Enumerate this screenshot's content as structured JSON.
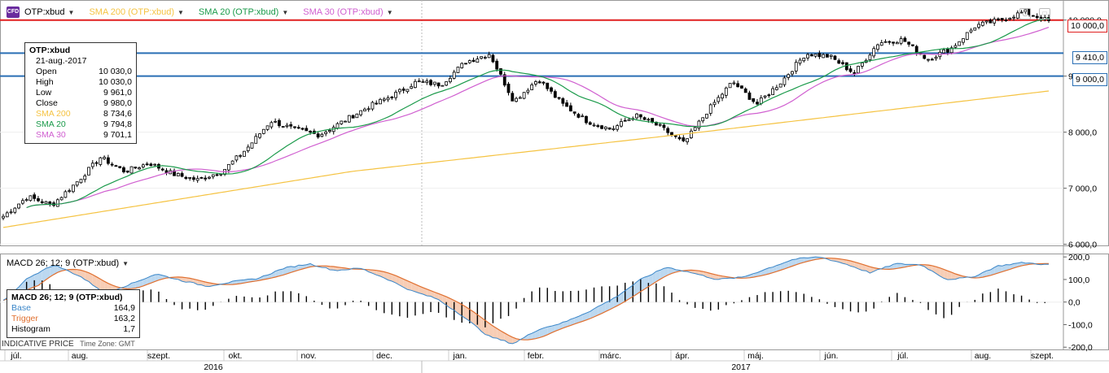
{
  "header": {
    "symbol": "OTP:xbud",
    "sma200_label": "SMA 200 (OTP:xbud)",
    "sma20_label": "SMA 20 (OTP:xbud)",
    "sma30_label": "SMA 30 (OTP:xbud)",
    "cfd_badge": "CFD"
  },
  "colors": {
    "sma200": "#f5c342",
    "sma20": "#1a9a4a",
    "sma30": "#d05fd0",
    "hline_red": "#e02020",
    "hline_blue": "#2a6fb5",
    "macd_base": "#3a86c8",
    "macd_trigger": "#e07030",
    "macd_fill_up": "#bcd8f0",
    "macd_fill_down": "#f7cdb5"
  },
  "info_box": {
    "title": "OTP:xbud",
    "date": "21-aug.-2017",
    "rows": [
      {
        "label": "Open",
        "value": "10 030,0"
      },
      {
        "label": "High",
        "value": "10 030,0"
      },
      {
        "label": "Low",
        "value": "9 961,0"
      },
      {
        "label": "Close",
        "value": "9 980,0"
      },
      {
        "label": "SMA 200",
        "value": "8 734,6"
      },
      {
        "label": "SMA 20",
        "value": "9 794,8"
      },
      {
        "label": "SMA 30",
        "value": "9 701,1"
      }
    ]
  },
  "price_tags": [
    {
      "label": "10 000,0",
      "value": 10000,
      "color": "hline_red"
    },
    {
      "label": "9 410,0",
      "value": 9410,
      "color": "hline_blue"
    },
    {
      "label": "9 000,0",
      "value": 9000,
      "color": "hline_blue"
    }
  ],
  "macd": {
    "title": "MACD 26; 12; 9 (OTP:xbud)",
    "box_title": "MACD 26; 12; 9 (OTP:xbud)",
    "rows": [
      {
        "label": "Base",
        "value": "164,9"
      },
      {
        "label": "Trigger",
        "value": "163,2"
      },
      {
        "label": "Histogram",
        "value": "1,7"
      }
    ]
  },
  "footer": {
    "indicative": "INDICATIVE PRICE",
    "timezone": "Time Zone: GMT"
  },
  "chart_data": [
    {
      "type": "line",
      "title": "OTP:xbud",
      "series": [
        {
          "name": "OTP:xbud",
          "kind": "candlestick"
        },
        {
          "name": "SMA 200 (OTP:xbud)"
        },
        {
          "name": "SMA 20 (OTP:xbud)"
        },
        {
          "name": "SMA 30 (OTP:xbud)"
        }
      ],
      "x_months": [
        "júl.",
        "aug.",
        "szept.",
        "okt.",
        "nov.",
        "dec.",
        "jan.",
        "febr.",
        "márc.",
        "ápr.",
        "máj.",
        "jún.",
        "júl.",
        "aug.",
        "szept."
      ],
      "x_years": [
        "2016",
        "2017"
      ],
      "y_ticks": [
        "10 000,0",
        "9 000,0",
        "8 000,0",
        "7 000,0",
        "6 000,0"
      ],
      "y_tick_values": [
        10000,
        9000,
        8000,
        7000,
        6000
      ],
      "ylim": [
        5980,
        10300
      ],
      "grid": true,
      "close_path": [
        6500,
        6850,
        6700,
        7100,
        7550,
        7300,
        7450,
        7250,
        7150,
        7300,
        7700,
        8200,
        8050,
        7950,
        8200,
        8450,
        8650,
        8900,
        8850,
        9250,
        9400,
        8550,
        8950,
        8500,
        8200,
        8050,
        8300,
        8100,
        7800,
        8400,
        8900,
        8500,
        8900,
        9400,
        9350,
        9050,
        9600,
        9650,
        9300,
        9500,
        9900,
        10000,
        10150,
        9980
      ],
      "sma200_path": [
        6300,
        7300,
        8000,
        8734.6
      ],
      "horizontal_levels": [
        10000,
        9410,
        9000
      ]
    },
    {
      "type": "line",
      "title": "MACD 26; 12; 9 (OTP:xbud)",
      "series": [
        {
          "name": "Base",
          "values": [
            5,
            110,
            165,
            115,
            40,
            80,
            125,
            95,
            70,
            90,
            105,
            150,
            170,
            140,
            150,
            105,
            50,
            15,
            -60,
            -150,
            -185,
            -120,
            -90,
            -40,
            20,
            100,
            155,
            130,
            100,
            110,
            150,
            190,
            200,
            170,
            130,
            170,
            165,
            100,
            110,
            160,
            175,
            165
          ]
        },
        {
          "name": "Trigger"
        },
        {
          "name": "Histogram"
        }
      ],
      "y_ticks": [
        "200,0",
        "100,0",
        "0,0",
        "-100,0",
        "-200,0"
      ],
      "y_tick_values": [
        200,
        100,
        0,
        -100,
        -200
      ],
      "ylim": [
        -210,
        215
      ],
      "latest": {
        "base": 164.9,
        "trigger": 163.2,
        "histogram": 1.7
      }
    }
  ]
}
